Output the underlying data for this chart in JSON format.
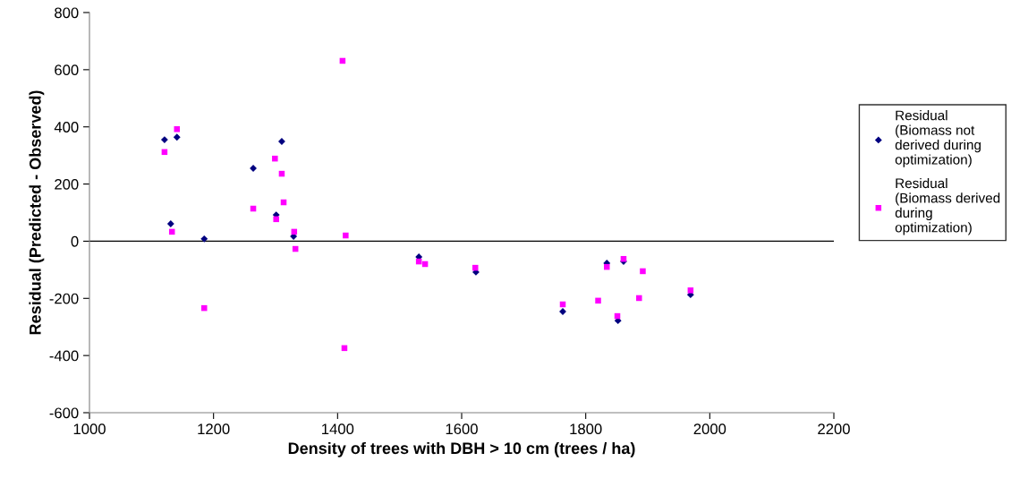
{
  "chart_data": {
    "type": "scatter",
    "xlabel": "Density of trees with DBH > 10 cm (trees / ha)",
    "ylabel": "Residual (Predicted - Observed)",
    "xlim": [
      1000,
      2200
    ],
    "xticks": [
      1000,
      1200,
      1400,
      1600,
      1800,
      2000,
      2200
    ],
    "ylim": [
      -600,
      800
    ],
    "yticks": [
      -600,
      -400,
      -200,
      0,
      200,
      400,
      600,
      800
    ],
    "ref_lines": [
      {
        "axis": "y",
        "value": 0,
        "color": "#000000",
        "line_style": "solid"
      }
    ],
    "legend": "right",
    "grid": false,
    "series": [
      {
        "name": "Residual\n(Biomass not\nderived during\noptimization)",
        "color": "#000080",
        "marker": "diamond",
        "x": [
          1121,
          1141,
          1131,
          1185,
          1264,
          1310,
          1301,
          1329,
          1531,
          1623,
          1763,
          1834,
          1861,
          1852,
          1969
        ],
        "values": [
          355,
          364,
          61,
          8,
          255,
          349,
          92,
          17,
          -55,
          -108,
          -246,
          -77,
          -71,
          -278,
          -187
        ]
      },
      {
        "name": "Residual\n(Biomass derived\nduring\noptimization)",
        "color": "#ff00ff",
        "marker": "square",
        "x": [
          1141,
          1121,
          1133,
          1185,
          1264,
          1299,
          1310,
          1313,
          1301,
          1330,
          1332,
          1408,
          1413,
          1411,
          1531,
          1541,
          1622,
          1763,
          1820,
          1834,
          1861,
          1892,
          1886,
          1851,
          1969
        ],
        "values": [
          392,
          312,
          33,
          -234,
          114,
          289,
          236,
          136,
          77,
          33,
          -27,
          631,
          20,
          -374,
          -71,
          -80,
          -93,
          -221,
          -208,
          -90,
          -62,
          -105,
          -199,
          -262,
          -172
        ]
      }
    ]
  }
}
